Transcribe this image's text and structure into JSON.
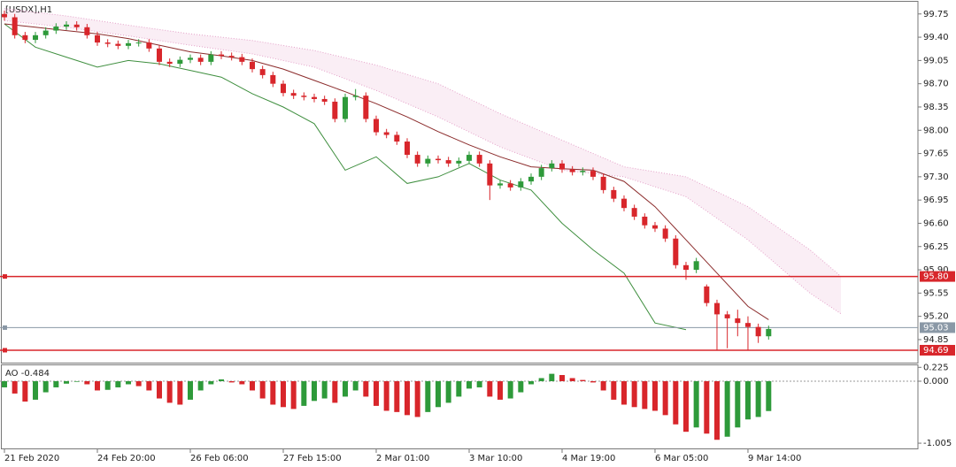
{
  "chart_data": {
    "type": "candlestick",
    "title": "[USDX],H1",
    "xlim": [
      -0.43,
      88.46
    ],
    "xticks": [
      {
        "value": 0,
        "label": "21 Feb 2020"
      },
      {
        "value": 9,
        "label": "24 Feb 20:00"
      },
      {
        "value": 18,
        "label": "26 Feb 06:00"
      },
      {
        "value": 27,
        "label": "27 Feb 15:00"
      },
      {
        "value": 36,
        "label": "2 Mar 01:00"
      },
      {
        "value": 45,
        "label": "3 Mar 10:00"
      },
      {
        "value": 54,
        "label": "4 Mar 19:00"
      },
      {
        "value": 63,
        "label": "6 Mar 05:00"
      },
      {
        "value": 72,
        "label": "9 Mar 14:00"
      }
    ],
    "ylim": [
      94.53,
      99.92
    ],
    "yticks": [
      99.75,
      {
        "value": 99.4,
        "label": "99.40"
      },
      99.05,
      {
        "value": 98.7,
        "label": "98.70"
      },
      98.35,
      {
        "value": 98,
        "label": "98.00"
      },
      97.65,
      {
        "value": 97.3,
        "label": "97.30"
      },
      96.95,
      {
        "value": 96.6,
        "label": "96.60"
      },
      96.25,
      {
        "value": 95.9,
        "label": "95.90"
      },
      95.55,
      {
        "value": 95.2,
        "label": "95.20"
      },
      94.85
    ],
    "up_color": "#2e9a3a",
    "down_color": "#d8262b",
    "open": [
      99.75,
      99.7,
      99.43,
      99.36,
      99.43,
      99.5,
      99.56,
      99.59,
      99.55,
      99.43,
      99.32,
      99.3,
      99.27,
      99.31,
      99.32,
      99.23,
      99.03,
      99.0,
      99.06,
      99.09,
      99.03,
      99.14,
      99.12,
      99.1,
      99.03,
      98.92,
      98.83,
      98.7,
      98.56,
      98.52,
      98.5,
      98.47,
      98.43,
      98.17,
      98.5,
      98.52,
      98.17,
      97.97,
      97.93,
      97.83,
      97.63,
      97.5,
      97.57,
      97.55,
      97.5,
      97.54,
      97.63,
      97.5,
      97.17,
      97.2,
      97.14,
      97.23,
      97.3,
      97.43,
      97.5,
      97.41,
      97.37,
      97.39,
      97.3,
      97.1,
      96.97,
      96.83,
      96.7,
      96.57,
      96.52,
      96.37,
      95.97,
      95.9,
      95.65,
      95.4,
      95.23,
      95.17,
      95.1,
      95.04,
      94.9
    ],
    "high": [
      99.8,
      99.75,
      99.48,
      99.48,
      99.55,
      99.61,
      99.64,
      99.64,
      99.6,
      99.48,
      99.37,
      99.35,
      99.36,
      99.37,
      99.37,
      99.28,
      99.08,
      99.11,
      99.14,
      99.14,
      99.19,
      99.19,
      99.17,
      99.15,
      99.08,
      98.97,
      98.88,
      98.75,
      98.61,
      98.57,
      98.55,
      98.52,
      98.48,
      98.55,
      98.62,
      98.57,
      98.22,
      98.02,
      97.98,
      97.88,
      97.68,
      97.62,
      97.62,
      97.6,
      97.59,
      97.68,
      97.68,
      97.55,
      97.25,
      97.25,
      97.28,
      97.35,
      97.48,
      97.55,
      97.55,
      97.46,
      97.44,
      97.44,
      97.35,
      97.15,
      97.02,
      96.88,
      96.75,
      96.62,
      96.57,
      96.42,
      96.02,
      96.08,
      95.68,
      95.45,
      95.28,
      95.3,
      95.2,
      95.09,
      95.06
    ],
    "low": [
      99.65,
      99.38,
      99.31,
      99.31,
      99.38,
      99.45,
      99.51,
      99.5,
      99.38,
      99.27,
      99.25,
      99.22,
      99.22,
      99.26,
      99.18,
      98.98,
      98.95,
      98.95,
      99.01,
      98.98,
      98.98,
      99.07,
      99.05,
      98.98,
      98.87,
      98.78,
      98.65,
      98.51,
      98.47,
      98.45,
      98.42,
      98.38,
      98.12,
      98.12,
      98.45,
      98.12,
      97.92,
      97.88,
      97.78,
      97.58,
      97.45,
      97.45,
      97.5,
      97.45,
      97.45,
      97.49,
      97.45,
      96.95,
      97.12,
      97.09,
      97.09,
      97.18,
      97.25,
      97.38,
      97.36,
      97.32,
      97.32,
      97.25,
      97.05,
      96.92,
      96.78,
      96.65,
      96.52,
      96.47,
      96.32,
      95.92,
      95.75,
      95.85,
      95.35,
      94.69,
      94.72,
      94.9,
      94.69,
      94.8,
      94.85
    ],
    "close": [
      99.7,
      99.43,
      99.36,
      99.43,
      99.5,
      99.56,
      99.59,
      99.55,
      99.43,
      99.32,
      99.3,
      99.27,
      99.31,
      99.32,
      99.23,
      99.03,
      99.0,
      99.06,
      99.09,
      99.03,
      99.14,
      99.12,
      99.1,
      99.03,
      98.92,
      98.83,
      98.7,
      98.56,
      98.52,
      98.5,
      98.47,
      98.43,
      98.17,
      98.5,
      98.52,
      98.17,
      97.97,
      97.93,
      97.83,
      97.63,
      97.5,
      97.57,
      97.55,
      97.5,
      97.54,
      97.63,
      97.5,
      97.17,
      97.2,
      97.14,
      97.23,
      97.3,
      97.43,
      97.5,
      97.41,
      97.37,
      97.39,
      97.3,
      97.1,
      96.97,
      96.83,
      96.7,
      96.57,
      96.52,
      96.37,
      95.97,
      95.9,
      96.03,
      95.4,
      95.23,
      95.17,
      95.1,
      95.04,
      94.9,
      95.01
    ],
    "ma": {
      "color": "#8b2b2b",
      "x": [
        0,
        3,
        6,
        9,
        12,
        15,
        18,
        21,
        24,
        27,
        30,
        33,
        36,
        39,
        42,
        45,
        48,
        51,
        54,
        57,
        60,
        63,
        66,
        69,
        72,
        74
      ],
      "values": [
        99.6,
        99.55,
        99.5,
        99.45,
        99.38,
        99.28,
        99.18,
        99.12,
        99.05,
        98.92,
        98.75,
        98.58,
        98.4,
        98.2,
        97.98,
        97.78,
        97.6,
        97.45,
        97.42,
        97.4,
        97.23,
        96.85,
        96.35,
        95.85,
        95.35,
        95.15
      ]
    },
    "chikou": {
      "color": "#3f8f3f",
      "x": [
        0,
        3,
        6,
        9,
        12,
        15,
        18,
        21,
        24,
        27,
        30,
        33,
        36,
        39,
        42,
        45,
        48,
        51,
        54,
        57,
        60,
        63,
        66
      ],
      "values": [
        99.6,
        99.25,
        99.1,
        98.95,
        99.05,
        99.0,
        98.9,
        98.8,
        98.55,
        98.35,
        98.1,
        97.4,
        97.6,
        97.2,
        97.3,
        97.5,
        97.25,
        97.1,
        96.6,
        96.2,
        95.85,
        95.1,
        95.0
      ]
    },
    "cloud": {
      "color": "#e4a0c8",
      "x": [
        0,
        6,
        12,
        18,
        24,
        30,
        36,
        42,
        48,
        54,
        60,
        66,
        72,
        78,
        81
      ],
      "span_a": [
        99.83,
        99.72,
        99.58,
        99.45,
        99.35,
        99.2,
        98.98,
        98.7,
        98.25,
        97.85,
        97.45,
        97.3,
        96.85,
        96.2,
        95.8
      ],
      "span_b": [
        99.65,
        99.55,
        99.42,
        99.28,
        99.15,
        98.95,
        98.6,
        98.2,
        97.75,
        97.4,
        97.3,
        97.0,
        96.35,
        95.55,
        95.24
      ]
    },
    "levels": [
      {
        "value": 95.8,
        "label": "95.80",
        "color": "#d8262b"
      },
      {
        "value": 95.03,
        "label": "95.03",
        "color": "#8a98a6"
      },
      {
        "value": 94.69,
        "label": "94.69",
        "color": "#d8262b"
      }
    ],
    "ao": {
      "type": "bar",
      "label": "AO -0.484",
      "ylim": [
        -1.09,
        0.258
      ],
      "yticks": [
        0.225,
        {
          "value": 0,
          "label": "0.000"
        },
        {
          "value": -1.005,
          "label": "-1.005"
        }
      ],
      "up_color": "#2e9a3a",
      "down_color": "#d8262b",
      "values": [
        -0.1,
        -0.2,
        -0.33,
        -0.3,
        -0.18,
        -0.1,
        -0.04,
        -0.01,
        -0.05,
        -0.15,
        -0.14,
        -0.1,
        -0.05,
        -0.08,
        -0.15,
        -0.28,
        -0.35,
        -0.38,
        -0.3,
        -0.15,
        -0.05,
        0.03,
        -0.02,
        -0.05,
        -0.15,
        -0.28,
        -0.38,
        -0.42,
        -0.45,
        -0.4,
        -0.32,
        -0.28,
        -0.35,
        -0.25,
        -0.15,
        -0.25,
        -0.4,
        -0.48,
        -0.5,
        -0.55,
        -0.58,
        -0.5,
        -0.42,
        -0.35,
        -0.25,
        -0.12,
        -0.1,
        -0.25,
        -0.3,
        -0.28,
        -0.18,
        -0.05,
        0.05,
        0.12,
        0.1,
        0.05,
        0.02,
        -0.02,
        -0.15,
        -0.3,
        -0.38,
        -0.42,
        -0.45,
        -0.48,
        -0.55,
        -0.7,
        -0.82,
        -0.75,
        -0.85,
        -0.95,
        -0.9,
        -0.75,
        -0.62,
        -0.58,
        -0.484
      ]
    }
  }
}
